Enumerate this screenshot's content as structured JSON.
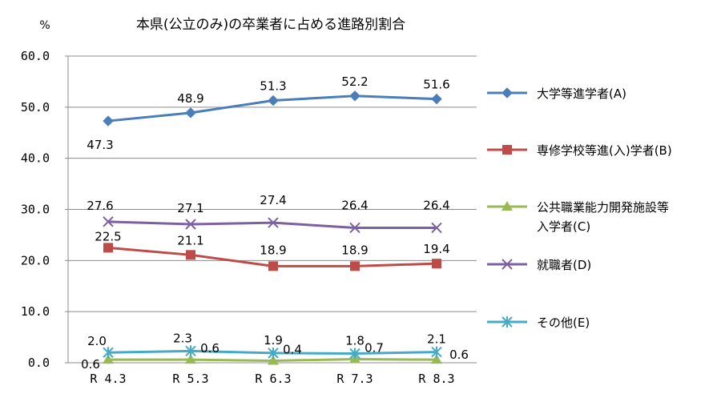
{
  "chart_data": {
    "type": "line",
    "title": "本県(公立のみ)の卒業者に占める進路別割合",
    "ylabel": "%",
    "ylim": [
      0,
      60
    ],
    "yticks": [
      "0.0",
      "10.0",
      "20.0",
      "30.0",
      "40.0",
      "50.0",
      "60.0"
    ],
    "categories": [
      "R 4.3",
      "R 5.3",
      "R 6.3",
      "R 7.3",
      "R 8.3"
    ],
    "grid": true,
    "legend_position": "right",
    "series": [
      {
        "name": "大学等進学者(A)",
        "values": [
          47.3,
          48.9,
          51.3,
          52.2,
          51.6
        ],
        "labels": [
          "47.3",
          "48.9",
          "51.3",
          "52.2",
          "51.6"
        ],
        "color": "#4a7ebb",
        "marker": "diamond"
      },
      {
        "name": "専修学校等進(入)学者(B)",
        "values": [
          22.5,
          21.1,
          18.9,
          18.9,
          19.4
        ],
        "labels": [
          "22.5",
          "21.1",
          "18.9",
          "18.9",
          "19.4"
        ],
        "color": "#be4b48",
        "marker": "square"
      },
      {
        "name": "公共職業能力開発施設等入学者(C)",
        "legend_lines": [
          "公共職業能力開発施設等",
          "入学者(C)"
        ],
        "values": [
          0.6,
          0.6,
          0.4,
          0.7,
          0.6
        ],
        "labels": [
          "0.6",
          "0.6",
          "0.4",
          "0.7",
          "0.6"
        ],
        "color": "#98b954",
        "marker": "triangle"
      },
      {
        "name": "就職者(D)",
        "values": [
          27.6,
          27.1,
          27.4,
          26.4,
          26.4
        ],
        "labels": [
          "27.6",
          "27.1",
          "27.4",
          "26.4",
          "26.4"
        ],
        "color": "#7d60a0",
        "marker": "x"
      },
      {
        "name": "その他(E)",
        "values": [
          2.0,
          2.3,
          1.9,
          1.8,
          2.1
        ],
        "labels": [
          "2.0",
          "2.3",
          "1.9",
          "1.8",
          "2.1"
        ],
        "color": "#46aac5",
        "marker": "star"
      }
    ]
  }
}
